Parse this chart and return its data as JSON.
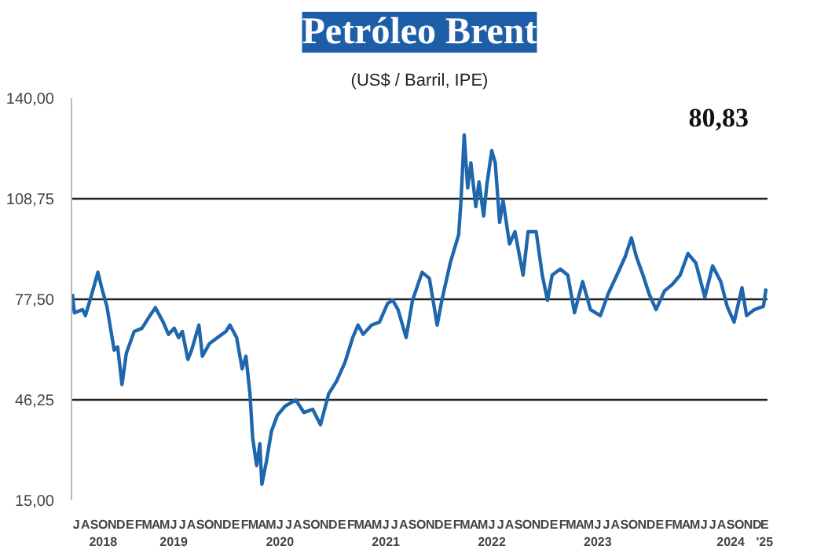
{
  "chart_data": {
    "type": "line",
    "title": "Petróleo Brent",
    "subtitle": "(US$ / Barril, IPE)",
    "annotations": [
      "80,83"
    ],
    "x": [
      "2018-07-01",
      "2018-07-08",
      "2018-08-05",
      "2018-08-15",
      "2018-09-03",
      "2018-09-27",
      "2018-10-10",
      "2018-10-28",
      "2018-11-22",
      "2018-12-04",
      "2018-12-19",
      "2019-01-03",
      "2019-01-30",
      "2019-02-26",
      "2019-03-25",
      "2019-04-13",
      "2019-05-10",
      "2019-05-28",
      "2019-06-17",
      "2019-07-02",
      "2019-07-15",
      "2019-08-03",
      "2019-08-16",
      "2019-09-10",
      "2019-09-22",
      "2019-10-16",
      "2019-11-13",
      "2019-12-12",
      "2019-12-26",
      "2020-01-18",
      "2020-02-06",
      "2020-02-19",
      "2020-03-04",
      "2020-03-13",
      "2020-03-27",
      "2020-04-07",
      "2020-04-14",
      "2020-04-29",
      "2020-05-17",
      "2020-06-06",
      "2020-07-03",
      "2020-08-09",
      "2020-09-06",
      "2020-10-06",
      "2020-11-02",
      "2020-11-30",
      "2020-12-27",
      "2021-01-25",
      "2021-02-21",
      "2021-03-11",
      "2021-03-29",
      "2021-04-27",
      "2021-05-24",
      "2021-06-21",
      "2021-07-09",
      "2021-07-27",
      "2021-08-24",
      "2021-09-15",
      "2021-10-18",
      "2021-11-12",
      "2021-12-09",
      "2021-12-25",
      "2022-01-23",
      "2022-02-21",
      "2022-03-01",
      "2022-03-12",
      "2022-03-24",
      "2022-04-04",
      "2022-04-21",
      "2022-05-02",
      "2022-05-18",
      "2022-05-29",
      "2022-06-15",
      "2022-06-27",
      "2022-07-12",
      "2022-07-24",
      "2022-08-15",
      "2022-09-03",
      "2022-10-01",
      "2022-10-18",
      "2022-11-15",
      "2022-12-06",
      "2022-12-24",
      "2023-01-09",
      "2023-02-06",
      "2023-03-04",
      "2023-03-27",
      "2023-04-24",
      "2023-05-21",
      "2023-06-24",
      "2023-07-21",
      "2023-08-20",
      "2023-09-18",
      "2023-10-09",
      "2023-10-26",
      "2023-11-18",
      "2023-12-09",
      "2024-01-02",
      "2024-01-31",
      "2024-02-27",
      "2024-03-25",
      "2024-04-21",
      "2024-05-18",
      "2024-06-18",
      "2024-07-15",
      "2024-08-12",
      "2024-09-03",
      "2024-09-27",
      "2024-10-24",
      "2024-11-09",
      "2024-12-06",
      "2025-01-06",
      "2025-01-15"
    ],
    "series": [
      {
        "color": "#1f67ad",
        "values": [
          79.2,
          73.3,
          74.3,
          72.4,
          78.2,
          85.9,
          81.1,
          75.3,
          61.7,
          62.7,
          51.0,
          60.7,
          67.5,
          68.5,
          72.4,
          74.9,
          70.4,
          66.6,
          68.5,
          65.6,
          67.5,
          58.8,
          61.7,
          69.5,
          59.8,
          63.7,
          65.6,
          67.5,
          69.5,
          65.6,
          55.9,
          59.8,
          48.1,
          34.6,
          25.8,
          32.6,
          20.0,
          26.8,
          36.5,
          41.4,
          44.3,
          46.2,
          42.3,
          43.3,
          38.5,
          48.1,
          52.0,
          57.8,
          65.6,
          69.5,
          66.6,
          69.5,
          70.4,
          76.2,
          77.2,
          74.3,
          65.6,
          77.2,
          85.9,
          84.0,
          69.5,
          77.2,
          88.8,
          97.6,
          108.2,
          128.6,
          112.1,
          119.9,
          106.3,
          114.0,
          103.4,
          113.1,
          123.7,
          119.9,
          101.4,
          108.2,
          94.7,
          98.5,
          85.0,
          98.5,
          98.5,
          85.0,
          77.2,
          85.0,
          86.9,
          85.0,
          73.3,
          83.0,
          74.3,
          72.4,
          79.2,
          85.0,
          90.8,
          96.6,
          90.8,
          85.0,
          79.2,
          74.3,
          80.1,
          82.1,
          85.0,
          91.7,
          88.8,
          78.2,
          87.9,
          83.0,
          75.3,
          70.4,
          81.1,
          72.4,
          74.3,
          75.3,
          80.83
        ]
      }
    ],
    "xlim": [
      "2018-06-28",
      "2025-01-20"
    ],
    "xticks": [
      {
        "value": "2018-07-15",
        "label": "J"
      },
      {
        "value": "2018-08-15",
        "label": "A"
      },
      {
        "value": "2018-09-15",
        "label": "S"
      },
      {
        "value": "2018-10-15",
        "label": "O\n2018"
      },
      {
        "value": "2018-11-15",
        "label": "N"
      },
      {
        "value": "2018-12-15",
        "label": "D"
      },
      {
        "value": "2019-01-15",
        "label": "E"
      },
      {
        "value": "2019-02-15",
        "label": "F"
      },
      {
        "value": "2019-03-15",
        "label": "M"
      },
      {
        "value": "2019-04-15",
        "label": "A"
      },
      {
        "value": "2019-05-15",
        "label": "M"
      },
      {
        "value": "2019-06-15",
        "label": "J\n2019"
      },
      {
        "value": "2019-07-15",
        "label": "J"
      },
      {
        "value": "2019-08-15",
        "label": "A"
      },
      {
        "value": "2019-09-15",
        "label": "S"
      },
      {
        "value": "2019-10-15",
        "label": "O"
      },
      {
        "value": "2019-11-15",
        "label": "N"
      },
      {
        "value": "2019-12-15",
        "label": "D"
      },
      {
        "value": "2020-01-15",
        "label": "E"
      },
      {
        "value": "2020-02-15",
        "label": "F"
      },
      {
        "value": "2020-03-15",
        "label": "M"
      },
      {
        "value": "2020-04-15",
        "label": "A"
      },
      {
        "value": "2020-05-15",
        "label": "M"
      },
      {
        "value": "2020-06-15",
        "label": "J\n2020"
      },
      {
        "value": "2020-07-15",
        "label": "J"
      },
      {
        "value": "2020-08-15",
        "label": "A"
      },
      {
        "value": "2020-09-15",
        "label": "S"
      },
      {
        "value": "2020-10-15",
        "label": "O"
      },
      {
        "value": "2020-11-15",
        "label": "N"
      },
      {
        "value": "2020-12-15",
        "label": "D"
      },
      {
        "value": "2021-01-15",
        "label": "E"
      },
      {
        "value": "2021-02-15",
        "label": "F"
      },
      {
        "value": "2021-03-15",
        "label": "M"
      },
      {
        "value": "2021-04-15",
        "label": "A"
      },
      {
        "value": "2021-05-15",
        "label": "M"
      },
      {
        "value": "2021-06-15",
        "label": "J\n2021"
      },
      {
        "value": "2021-07-15",
        "label": "J"
      },
      {
        "value": "2021-08-15",
        "label": "A"
      },
      {
        "value": "2021-09-15",
        "label": "S"
      },
      {
        "value": "2021-10-15",
        "label": "O"
      },
      {
        "value": "2021-11-15",
        "label": "N"
      },
      {
        "value": "2021-12-15",
        "label": "D"
      },
      {
        "value": "2022-01-15",
        "label": "E"
      },
      {
        "value": "2022-02-15",
        "label": "F"
      },
      {
        "value": "2022-03-15",
        "label": "M"
      },
      {
        "value": "2022-04-15",
        "label": "A"
      },
      {
        "value": "2022-05-15",
        "label": "M"
      },
      {
        "value": "2022-06-15",
        "label": "J\n2022"
      },
      {
        "value": "2022-07-15",
        "label": "J"
      },
      {
        "value": "2022-08-15",
        "label": "A"
      },
      {
        "value": "2022-09-15",
        "label": "S"
      },
      {
        "value": "2022-10-15",
        "label": "O"
      },
      {
        "value": "2022-11-15",
        "label": "N"
      },
      {
        "value": "2022-12-15",
        "label": "D"
      },
      {
        "value": "2023-01-15",
        "label": "E"
      },
      {
        "value": "2023-02-15",
        "label": "F"
      },
      {
        "value": "2023-03-15",
        "label": "M"
      },
      {
        "value": "2023-04-15",
        "label": "A"
      },
      {
        "value": "2023-05-15",
        "label": "M"
      },
      {
        "value": "2023-06-15",
        "label": "J\n2023"
      },
      {
        "value": "2023-07-15",
        "label": "J"
      },
      {
        "value": "2023-08-15",
        "label": "A"
      },
      {
        "value": "2023-09-15",
        "label": "S"
      },
      {
        "value": "2023-10-15",
        "label": "O"
      },
      {
        "value": "2023-11-15",
        "label": "N"
      },
      {
        "value": "2023-12-15",
        "label": "D"
      },
      {
        "value": "2024-01-15",
        "label": "E"
      },
      {
        "value": "2024-02-15",
        "label": "F"
      },
      {
        "value": "2024-03-15",
        "label": "M"
      },
      {
        "value": "2024-04-15",
        "label": "A"
      },
      {
        "value": "2024-05-15",
        "label": "M"
      },
      {
        "value": "2024-06-15",
        "label": "J"
      },
      {
        "value": "2024-07-15",
        "label": "J"
      },
      {
        "value": "2024-08-15",
        "label": "A"
      },
      {
        "value": "2024-09-15",
        "label": "S\n2024"
      },
      {
        "value": "2024-10-15",
        "label": "O"
      },
      {
        "value": "2024-11-15",
        "label": "N"
      },
      {
        "value": "2024-12-15",
        "label": "D"
      },
      {
        "value": "2025-01-10",
        "label": "E\n'25"
      }
    ],
    "ylim": [
      15,
      140
    ],
    "yticks": [
      {
        "value": 15,
        "label": "15,00"
      },
      {
        "value": 46.25,
        "label": "46,25"
      },
      {
        "value": 77.5,
        "label": "77,50"
      },
      {
        "value": 108.75,
        "label": "108,75"
      },
      {
        "value": 140,
        "label": "140,00"
      }
    ],
    "grid": "y",
    "line_style": "solid"
  }
}
